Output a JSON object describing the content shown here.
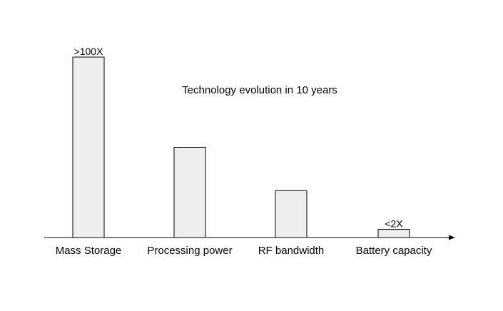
{
  "chart_data": {
    "type": "bar",
    "title": "Technology evolution in 10 years",
    "xlabel": "",
    "ylabel": "",
    "categories": [
      "Mass Storage",
      "Processing power",
      "RF bandwidth",
      "Battery capacity"
    ],
    "values": [
      100,
      50,
      26,
      4.5
    ],
    "data_labels": [
      ">100X",
      "",
      "",
      "<2X"
    ],
    "ylim": [
      0,
      100
    ],
    "grid": false,
    "legend": "none",
    "colors": {
      "bar_fill": "#eeeeee",
      "bar_stroke": "#000000",
      "axis": "#000000"
    }
  }
}
